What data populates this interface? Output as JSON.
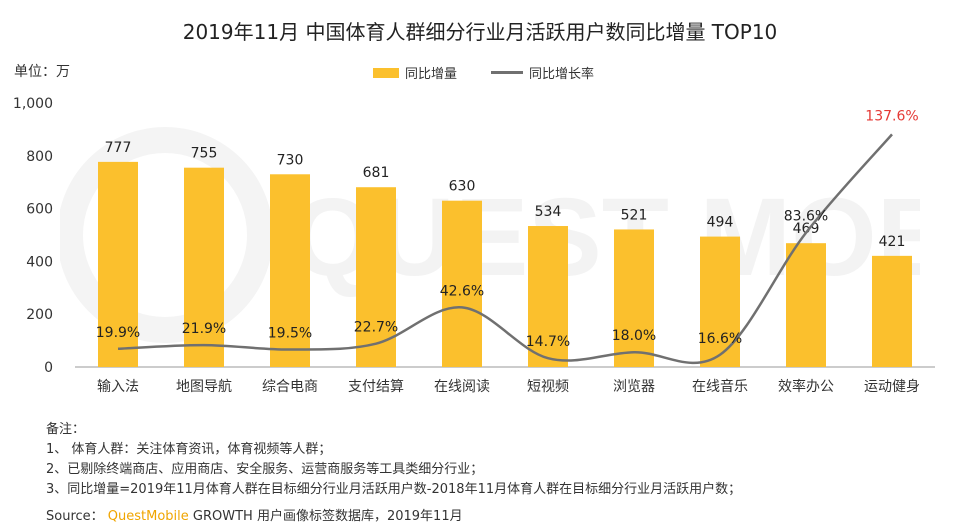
{
  "title": "2019年11月 中国体育人群细分行业月活跃用户数同比增量 TOP10",
  "unit_label": "单位：万",
  "legend": {
    "bar_label": "同比增量",
    "line_label": "同比增长率"
  },
  "notes": {
    "header": "备注：",
    "lines": [
      "1、 体育人群：关注体育资讯，体育视频等人群；",
      "2、已剔除终端商店、应用商店、安全服务、运营商服务等工具类细分行业；",
      "3、同比增量=2019年11月体育人群在目标细分行业月活跃用户数-2018年11月体育人群在目标细分行业月活跃用户数；"
    ]
  },
  "source": {
    "prefix": "Source：",
    "brand": "QuestMobile",
    "text": " GROWTH 用户画像标签数据库，2019年11月"
  },
  "watermark": "QUEST MOBILE",
  "colors": {
    "bar": "#fbc02d",
    "line": "#707070",
    "highlight": "#e53935",
    "axis": "#999999"
  },
  "chart_data": {
    "type": "bar",
    "categories": [
      "输入法",
      "地图导航",
      "综合电商",
      "支付结算",
      "在线阅读",
      "短视频",
      "浏览器",
      "在线音乐",
      "效率办公",
      "运动健身"
    ],
    "series": [
      {
        "name": "同比增量",
        "type": "bar",
        "values": [
          777,
          755,
          730,
          681,
          630,
          534,
          521,
          494,
          469,
          421
        ]
      },
      {
        "name": "同比增长率",
        "type": "line",
        "values": [
          19.9,
          21.9,
          19.5,
          22.7,
          42.6,
          14.7,
          18.0,
          16.6,
          83.6,
          137.6
        ],
        "labels": [
          "19.9%",
          "21.9%",
          "19.5%",
          "22.7%",
          "42.6%",
          "14.7%",
          "18.0%",
          "16.6%",
          "83.6%",
          "137.6%"
        ]
      }
    ],
    "y_ticks": [
      "0",
      "200",
      "400",
      "600",
      "800",
      "1,000"
    ],
    "ylim": [
      0,
      1000
    ],
    "highlight_index": 9
  }
}
